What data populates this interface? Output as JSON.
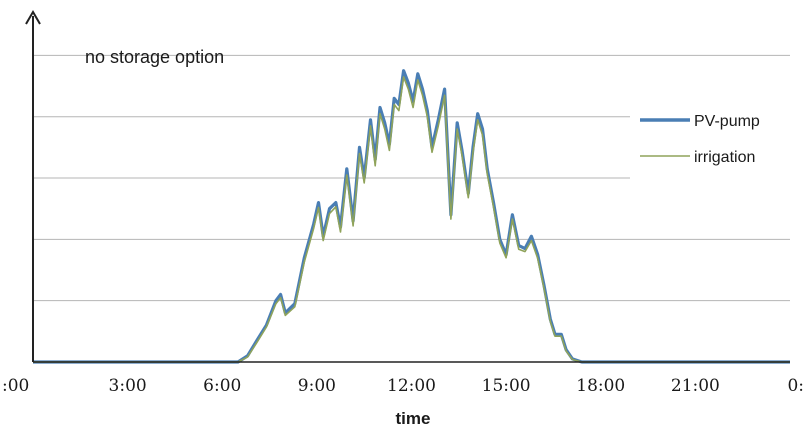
{
  "chart_data": {
    "type": "line",
    "title": "",
    "annotation": "no storage option",
    "xlabel": "time",
    "ylabel": "",
    "x_tick_labels": [
      ":00",
      "3:00",
      "6:00",
      "9:00",
      "12:00",
      "15:00",
      "18:00",
      "21:00",
      "0:"
    ],
    "xlim": [
      0,
      24
    ],
    "ylim": [
      0,
      5.3
    ],
    "y_gridlines": [
      1,
      2,
      3,
      4,
      5
    ],
    "grid": true,
    "legend_position": "right",
    "x": [
      0,
      6.5,
      6.8,
      7.1,
      7.4,
      7.7,
      7.85,
      8.0,
      8.3,
      8.6,
      8.9,
      9.05,
      9.2,
      9.4,
      9.6,
      9.75,
      9.95,
      10.15,
      10.35,
      10.5,
      10.7,
      10.85,
      11.0,
      11.15,
      11.3,
      11.45,
      11.6,
      11.75,
      11.9,
      12.05,
      12.2,
      12.35,
      12.5,
      12.65,
      12.85,
      13.05,
      13.25,
      13.45,
      13.6,
      13.8,
      13.95,
      14.1,
      14.25,
      14.4,
      14.6,
      14.8,
      15.0,
      15.2,
      15.4,
      15.6,
      15.8,
      16.0,
      16.2,
      16.4,
      16.55,
      16.75,
      16.9,
      17.1,
      17.4,
      24
    ],
    "series": [
      {
        "name": "PV-pump",
        "color": "#4a7eb4",
        "values": [
          0,
          0,
          0.1,
          0.35,
          0.6,
          1.0,
          1.1,
          0.8,
          0.95,
          1.7,
          2.25,
          2.6,
          2.05,
          2.5,
          2.6,
          2.2,
          3.15,
          2.3,
          3.5,
          3.0,
          3.95,
          3.3,
          4.15,
          3.9,
          3.55,
          4.3,
          4.2,
          4.75,
          4.55,
          4.25,
          4.7,
          4.45,
          4.1,
          3.5,
          3.95,
          4.45,
          2.4,
          3.9,
          3.45,
          2.75,
          3.5,
          4.05,
          3.8,
          3.15,
          2.6,
          2.0,
          1.75,
          2.4,
          1.9,
          1.85,
          2.05,
          1.75,
          1.25,
          0.7,
          0.45,
          0.45,
          0.2,
          0.05,
          0,
          0
        ]
      },
      {
        "name": "irrigation",
        "color": "#8fa35a",
        "values": [
          0,
          0,
          0.08,
          0.32,
          0.57,
          0.95,
          1.05,
          0.76,
          0.9,
          1.63,
          2.18,
          2.52,
          1.98,
          2.42,
          2.53,
          2.12,
          3.05,
          2.22,
          3.4,
          2.92,
          3.85,
          3.2,
          4.05,
          3.8,
          3.45,
          4.2,
          4.1,
          4.65,
          4.45,
          4.15,
          4.6,
          4.35,
          4.0,
          3.42,
          3.85,
          4.35,
          2.33,
          3.8,
          3.37,
          2.68,
          3.42,
          3.95,
          3.7,
          3.07,
          2.53,
          1.94,
          1.7,
          2.33,
          1.84,
          1.8,
          1.98,
          1.69,
          1.2,
          0.66,
          0.42,
          0.42,
          0.18,
          0.04,
          0,
          0
        ]
      }
    ]
  }
}
